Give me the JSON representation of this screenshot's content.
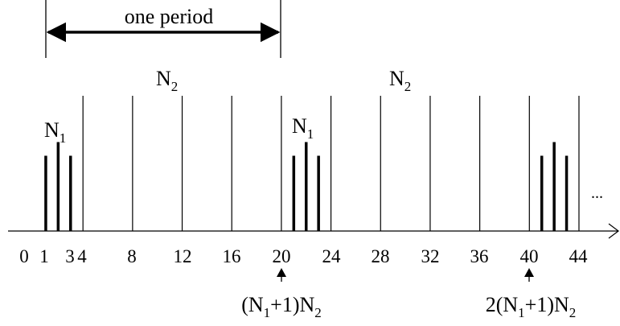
{
  "period": {
    "label": "one period"
  },
  "segment_labels": [
    {
      "main": "N",
      "sub": "2"
    },
    {
      "main": "N",
      "sub": "2"
    }
  ],
  "group_labels": [
    {
      "main": "N",
      "sub": "1"
    },
    {
      "main": "N",
      "sub": "1"
    }
  ],
  "axis": {
    "tick_labels": [
      "0",
      "1",
      "3",
      "4",
      "8",
      "12",
      "16",
      "20",
      "24",
      "28",
      "32",
      "36",
      "40",
      "44"
    ],
    "continuation": "..."
  },
  "annotations": [
    {
      "value": 20,
      "prefix": "(N",
      "sub": "1",
      "suffix": "+1)N",
      "sub2": "2"
    },
    {
      "value": 40,
      "prefix": "2(N",
      "sub": "1",
      "suffix": "+1)N",
      "sub2": "2"
    }
  ],
  "dividers": [
    4,
    8,
    12,
    16,
    20,
    24,
    28,
    32,
    36,
    40,
    44
  ],
  "pulses": [
    {
      "index": 1,
      "level": 0.55
    },
    {
      "index": 2,
      "level": 0.65
    },
    {
      "index": 3,
      "level": 0.55
    },
    {
      "index": 21,
      "level": 0.55
    },
    {
      "index": 22,
      "level": 0.65
    },
    {
      "index": 23,
      "level": 0.55
    },
    {
      "index": 41,
      "level": 0.55
    },
    {
      "index": 42,
      "level": 0.65
    },
    {
      "index": 43,
      "level": 0.55
    }
  ],
  "colors": {
    "ink": "#000000",
    "background": "#ffffff"
  }
}
